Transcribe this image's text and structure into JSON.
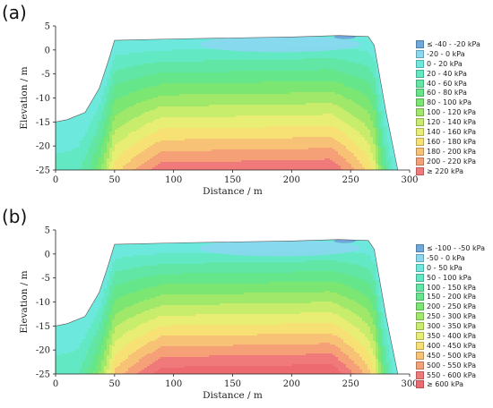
{
  "chart_data": [
    {
      "type": "heatmap",
      "panel_label": "(a)",
      "xlabel": "Distance / m",
      "ylabel": "Elevation / m",
      "xlim": [
        0,
        300
      ],
      "ylim": [
        -25,
        5
      ],
      "x_ticks": [
        0,
        50,
        100,
        150,
        200,
        250,
        300
      ],
      "y_ticks": [
        5,
        0,
        -5,
        -10,
        -15,
        -20,
        -25
      ],
      "surface_profile": [
        [
          0,
          -15
        ],
        [
          10,
          -14.5
        ],
        [
          25,
          -13
        ],
        [
          37,
          -8
        ],
        [
          45,
          -2
        ],
        [
          50,
          2
        ],
        [
          100,
          2.3
        ],
        [
          200,
          2.7
        ],
        [
          240,
          3
        ],
        [
          265,
          2.8
        ],
        [
          270,
          1
        ],
        [
          280,
          -13
        ],
        [
          290,
          -25
        ]
      ],
      "base_value": 0,
      "max_value": 230,
      "legend": [
        {
          "label": "≤ -40 - -20 kPa",
          "color": "#6fa8dc"
        },
        {
          "label": "-20 - 0 kPa",
          "color": "#8ad7f0"
        },
        {
          "label": "0 - 20 kPa",
          "color": "#6de8dc"
        },
        {
          "label": "20 - 40 kPa",
          "color": "#62e8c2"
        },
        {
          "label": "40 - 60 kPa",
          "color": "#62e6a5"
        },
        {
          "label": "60 - 80 kPa",
          "color": "#66e68a"
        },
        {
          "label": "80 - 100 kPa",
          "color": "#7ce672"
        },
        {
          "label": "100 - 120 kPa",
          "color": "#a0e86a"
        },
        {
          "label": "120 - 140 kPa",
          "color": "#c8ec6c"
        },
        {
          "label": "140 - 160 kPa",
          "color": "#e8ee74"
        },
        {
          "label": "160 - 180 kPa",
          "color": "#f7e074"
        },
        {
          "label": "180 - 200 kPa",
          "color": "#f8c276"
        },
        {
          "label": "200 - 220 kPa",
          "color": "#f6a078"
        },
        {
          "label": "≥ 220 kPa",
          "color": "#f07a7a"
        }
      ]
    },
    {
      "type": "heatmap",
      "panel_label": "(b)",
      "xlabel": "Distance / m",
      "ylabel": "Elevation / m",
      "xlim": [
        0,
        300
      ],
      "ylim": [
        -25,
        5
      ],
      "x_ticks": [
        0,
        50,
        100,
        150,
        200,
        250,
        300
      ],
      "y_ticks": [
        5,
        0,
        -5,
        -10,
        -15,
        -20,
        -25
      ],
      "surface_profile": [
        [
          0,
          -15
        ],
        [
          10,
          -14.5
        ],
        [
          25,
          -13
        ],
        [
          37,
          -8
        ],
        [
          45,
          -2
        ],
        [
          50,
          2
        ],
        [
          100,
          2.3
        ],
        [
          200,
          2.7
        ],
        [
          240,
          3
        ],
        [
          265,
          2.8
        ],
        [
          270,
          1
        ],
        [
          280,
          -13
        ],
        [
          290,
          -25
        ]
      ],
      "base_value": 0,
      "max_value": 620,
      "legend": [
        {
          "label": "≤ -100 - -50 kPa",
          "color": "#6fa8dc"
        },
        {
          "label": "-50 - 0 kPa",
          "color": "#8ad7f0"
        },
        {
          "label": "0 - 50 kPa",
          "color": "#6de8dc"
        },
        {
          "label": "50 - 100 kPa",
          "color": "#62e8c2"
        },
        {
          "label": "100 - 150 kPa",
          "color": "#62e6a5"
        },
        {
          "label": "150 - 200 kPa",
          "color": "#66e68a"
        },
        {
          "label": "200 - 250 kPa",
          "color": "#7ce672"
        },
        {
          "label": "250 - 300 kPa",
          "color": "#a0e86a"
        },
        {
          "label": "300 - 350 kPa",
          "color": "#c8ec6c"
        },
        {
          "label": "350 - 400 kPa",
          "color": "#e8ee74"
        },
        {
          "label": "400 - 450 kPa",
          "color": "#f7e074"
        },
        {
          "label": "450 - 500 kPa",
          "color": "#f8c276"
        },
        {
          "label": "500 - 550 kPa",
          "color": "#f6a078"
        },
        {
          "label": "550 - 600 kPa",
          "color": "#f07a7a"
        },
        {
          "label": "≥ 600 kPa",
          "color": "#ec6a70"
        }
      ]
    }
  ]
}
